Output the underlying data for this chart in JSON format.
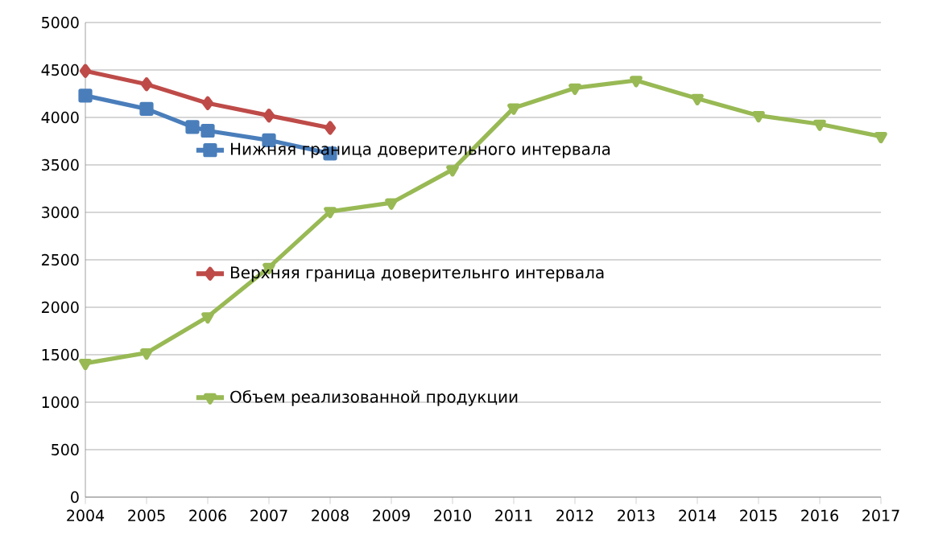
{
  "chart_data": {
    "type": "line",
    "xlim": [
      2004,
      2017
    ],
    "xticks": [
      2004,
      2005,
      2006,
      2007,
      2008,
      2009,
      2010,
      2011,
      2012,
      2013,
      2014,
      2015,
      2016,
      2017
    ],
    "ylim": [
      0,
      5000
    ],
    "yticks": [
      0,
      500,
      1000,
      1500,
      2000,
      2500,
      3000,
      3500,
      4000,
      4500,
      5000
    ],
    "grid": "y",
    "legend": "left",
    "series": [
      {
        "name": "Нижняя граница доверительного интервала",
        "color": "#4a7ebb",
        "marker": "square",
        "x": [
          2004,
          2005,
          2005.75,
          2006,
          2007,
          2008
        ],
        "values": [
          4230,
          4090,
          3900,
          3860,
          3760,
          3620
        ]
      },
      {
        "name": "Верхняя граница доверительнго интервала",
        "color": "#be4b48",
        "marker": "diamond",
        "x": [
          2004,
          2005,
          2006,
          2007,
          2008
        ],
        "values": [
          4490,
          4350,
          4150,
          4020,
          3890
        ]
      },
      {
        "name": "Объем реализованной продукции",
        "color": "#98b954",
        "marker": "triangle",
        "x": [
          2004,
          2005,
          2006,
          2007,
          2008,
          2009,
          2010,
          2011,
          2012,
          2013,
          2014,
          2015,
          2016,
          2017
        ],
        "values": [
          1410,
          1520,
          1900,
          2420,
          3010,
          3100,
          3450,
          4100,
          4310,
          4390,
          4200,
          4020,
          3930,
          3800
        ]
      }
    ]
  }
}
